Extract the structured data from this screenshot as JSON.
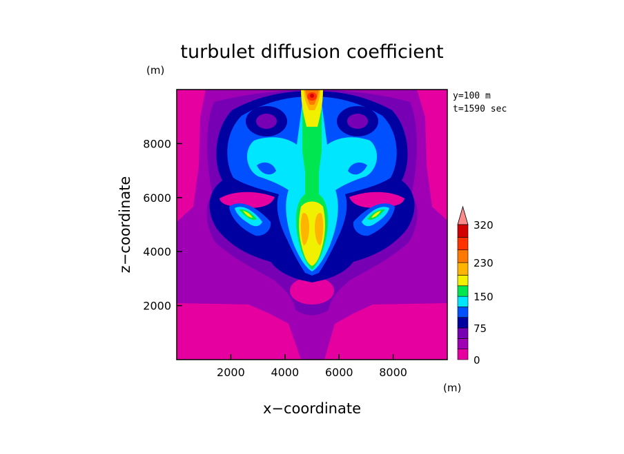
{
  "chart_data": {
    "type": "heatmap",
    "title": "turbulet diffusion coefficient",
    "xlabel": "x−coordinate",
    "ylabel": "z−coordinate",
    "x_unit": "(m)",
    "y_unit": "(m)",
    "annotations": [
      "y=100 m",
      "t=1590 sec"
    ],
    "xlim": [
      0,
      10000
    ],
    "ylim": [
      0,
      10000
    ],
    "x_ticks": [
      2000,
      4000,
      6000,
      8000
    ],
    "y_ticks": [
      2000,
      4000,
      6000,
      8000
    ],
    "x_tick_labels": [
      "2000",
      "4000",
      "6000",
      "8000"
    ],
    "y_tick_labels": [
      "2000",
      "4000",
      "6000",
      "8000"
    ],
    "colorbar": {
      "levels": [
        0,
        25,
        50,
        75,
        100,
        125,
        150,
        175,
        200,
        230,
        260,
        290,
        320
      ],
      "tick_labels": [
        "0",
        "75",
        "150",
        "230",
        "320"
      ],
      "colors": [
        "#e600a0",
        "#a000b4",
        "#7800b4",
        "#0000a0",
        "#0050ff",
        "#00e6ff",
        "#00e650",
        "#f0f000",
        "#ffb400",
        "#ff7800",
        "#ff3200",
        "#d20000"
      ],
      "extend_color": "#ff8a8a"
    }
  }
}
